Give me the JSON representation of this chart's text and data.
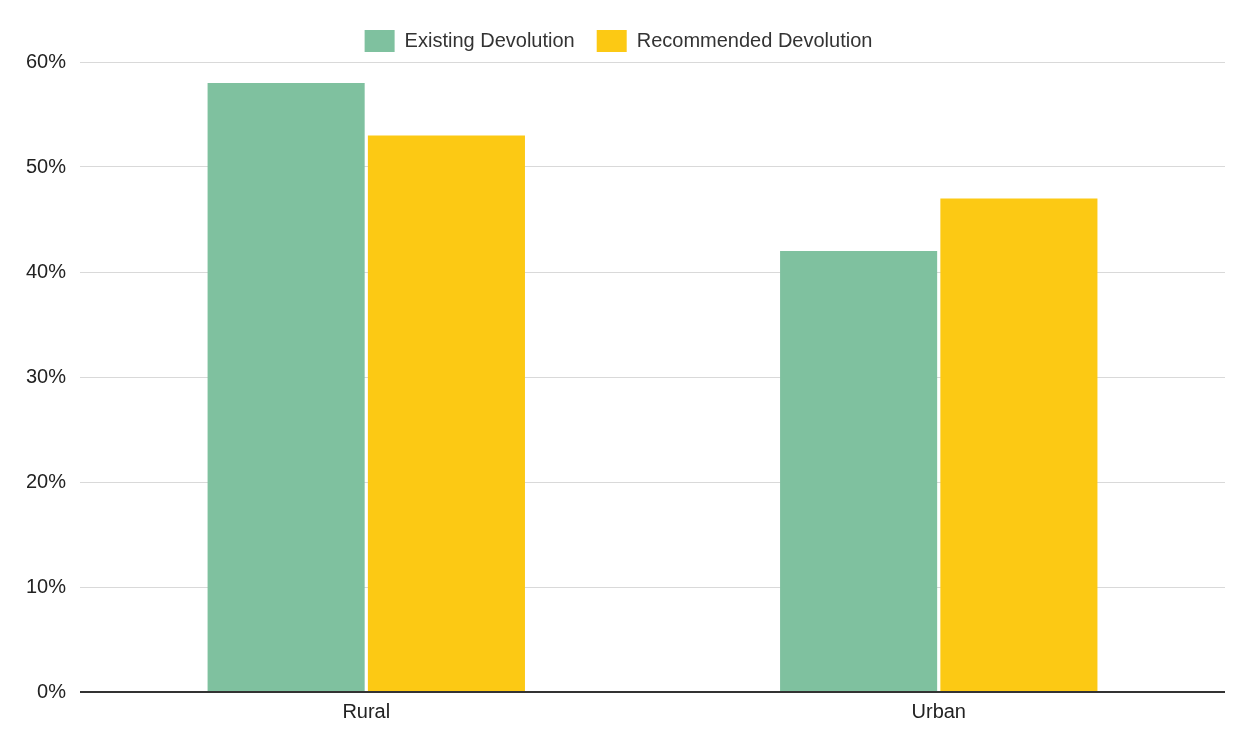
{
  "chart_data": {
    "type": "bar",
    "categories": [
      "Rural",
      "Urban"
    ],
    "series": [
      {
        "name": "Existing Devolution",
        "color": "#7fc19f",
        "values": [
          58,
          42
        ]
      },
      {
        "name": "Recommended Devolution",
        "color": "#fcc914",
        "values": [
          53,
          47
        ]
      }
    ],
    "ylim": [
      0,
      60
    ],
    "yticks": [
      {
        "value": 0,
        "label": "0%"
      },
      {
        "value": 10,
        "label": "10%"
      },
      {
        "value": 20,
        "label": "20%"
      },
      {
        "value": 30,
        "label": "30%"
      },
      {
        "value": 40,
        "label": "40%"
      },
      {
        "value": 50,
        "label": "50%"
      },
      {
        "value": 60,
        "label": "60%"
      }
    ],
    "grid": "y",
    "legend": "top"
  }
}
